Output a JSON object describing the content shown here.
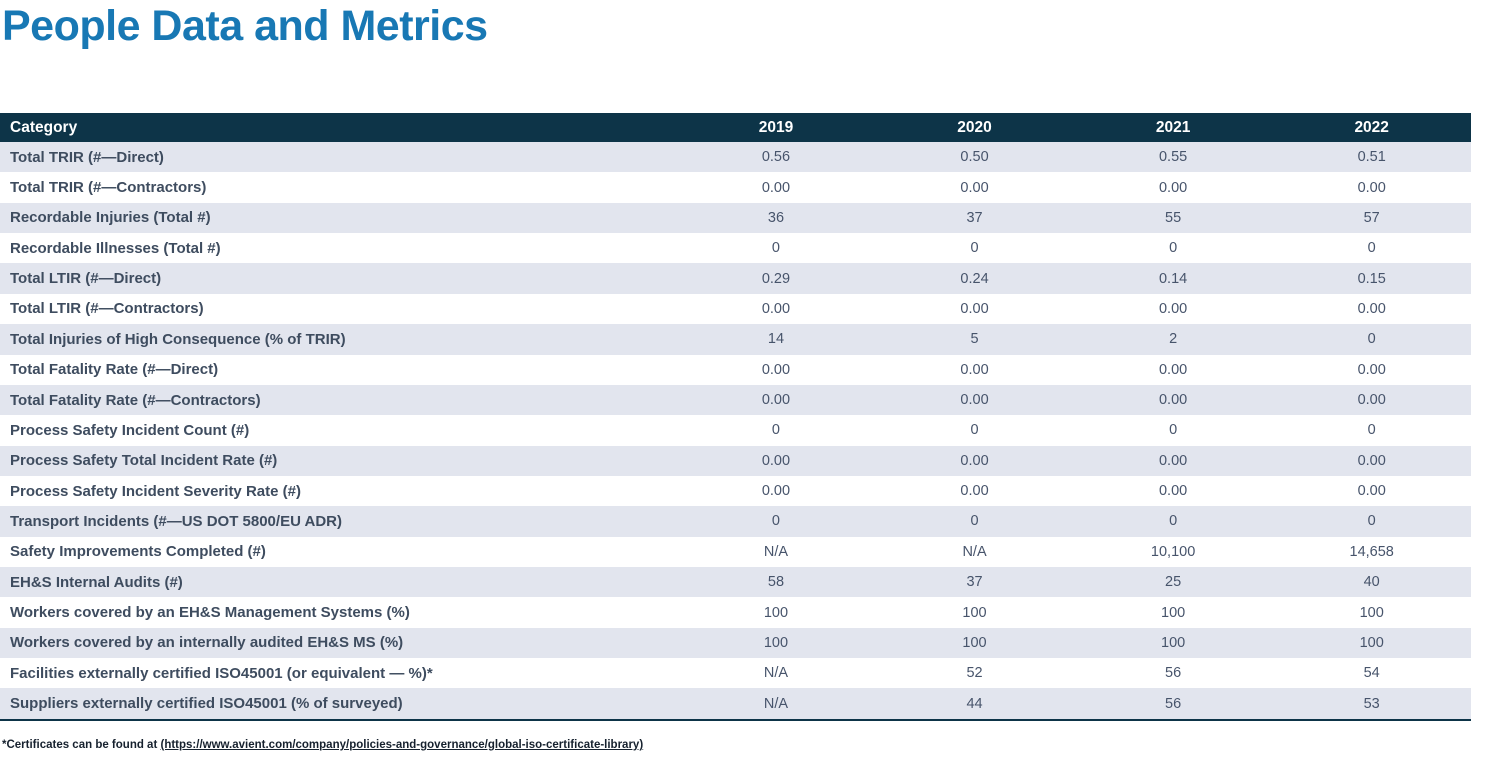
{
  "title": "People Data and Metrics",
  "colors": {
    "title_blue": "#1878b4",
    "header_bg": "#0d3448",
    "alt_row_bg": "#e2e5ee",
    "label_text": "#3e4c5f",
    "value_text": "#47546b",
    "footnote_text": "#16212e"
  },
  "table": {
    "columns": [
      "Category",
      "2019",
      "2020",
      "2021",
      "2022"
    ],
    "rows": [
      {
        "category": "Total TRIR (#—Direct)",
        "values": [
          "0.56",
          "0.50",
          "0.55",
          "0.51"
        ]
      },
      {
        "category": "Total TRIR (#—Contractors)",
        "values": [
          "0.00",
          "0.00",
          "0.00",
          "0.00"
        ]
      },
      {
        "category": "Recordable Injuries (Total #)",
        "values": [
          "36",
          "37",
          "55",
          "57"
        ]
      },
      {
        "category": "Recordable Illnesses (Total #)",
        "values": [
          "0",
          "0",
          "0",
          "0"
        ]
      },
      {
        "category": "Total LTIR (#—Direct)",
        "values": [
          "0.29",
          "0.24",
          "0.14",
          "0.15"
        ]
      },
      {
        "category": "Total LTIR (#—Contractors)",
        "values": [
          "0.00",
          "0.00",
          "0.00",
          "0.00"
        ]
      },
      {
        "category": "Total Injuries of High Consequence (% of TRIR)",
        "values": [
          "14",
          "5",
          "2",
          "0"
        ]
      },
      {
        "category": "Total Fatality Rate (#—Direct)",
        "values": [
          "0.00",
          "0.00",
          "0.00",
          "0.00"
        ]
      },
      {
        "category": "Total Fatality Rate (#—Contractors)",
        "values": [
          "0.00",
          "0.00",
          "0.00",
          "0.00"
        ]
      },
      {
        "category": "Process Safety Incident Count (#)",
        "values": [
          "0",
          "0",
          "0",
          "0"
        ]
      },
      {
        "category": "Process Safety Total Incident Rate (#)",
        "values": [
          "0.00",
          "0.00",
          "0.00",
          "0.00"
        ]
      },
      {
        "category": "Process Safety Incident Severity Rate (#)",
        "values": [
          "0.00",
          "0.00",
          "0.00",
          "0.00"
        ]
      },
      {
        "category": "Transport Incidents (#—US DOT 5800/EU ADR)",
        "values": [
          "0",
          "0",
          "0",
          "0"
        ]
      },
      {
        "category": "Safety Improvements Completed (#)",
        "values": [
          "N/A",
          "N/A",
          "10,100",
          "14,658"
        ]
      },
      {
        "category": "EH&S Internal Audits (#)",
        "values": [
          "58",
          "37",
          "25",
          "40"
        ]
      },
      {
        "category": "Workers covered by an EH&S Management Systems (%)",
        "values": [
          "100",
          "100",
          "100",
          "100"
        ]
      },
      {
        "category": "Workers covered by an internally audited EH&S MS (%)",
        "values": [
          "100",
          "100",
          "100",
          "100"
        ]
      },
      {
        "category": "Facilities externally certified ISO45001 (or equivalent — %)*",
        "values": [
          "N/A",
          "52",
          "56",
          "54"
        ]
      },
      {
        "category": "Suppliers externally certified ISO45001 (% of surveyed)",
        "values": [
          "N/A",
          "44",
          "56",
          "53"
        ]
      }
    ]
  },
  "footnote": {
    "prefix": "*Certificates can be found at ",
    "link_text": "(https://www.avient.com/company/policies-and-governance/global-iso-certificate-library)"
  }
}
